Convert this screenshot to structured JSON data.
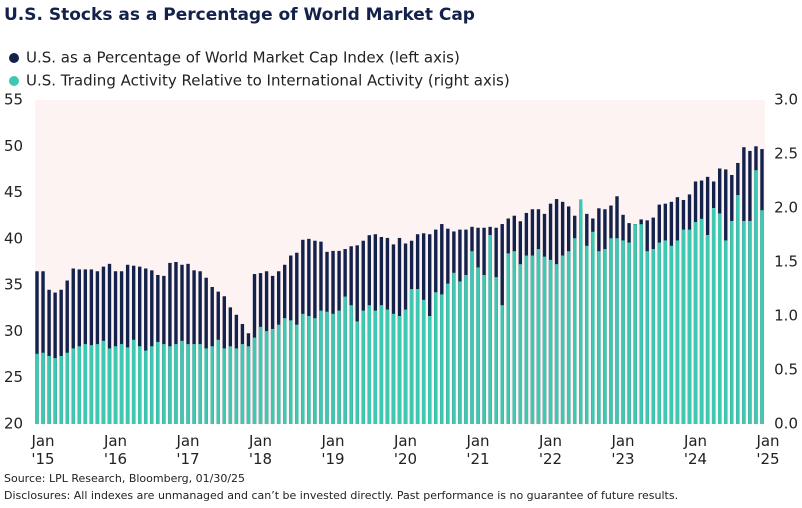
{
  "chart_data": {
    "type": "bar",
    "title": "U.S. Stocks as a Percentage of World Market Cap",
    "source": "Source: LPL Research, Bloomberg, 01/30/25",
    "disclosure": "Disclosures: All indexes are unmanaged and can’t be invested directly. Past performance is no guarantee of future results.",
    "categories": [
      "Jan '15",
      null,
      null,
      null,
      null,
      null,
      null,
      null,
      null,
      null,
      null,
      null,
      "Jan '16",
      null,
      null,
      null,
      null,
      null,
      null,
      null,
      null,
      null,
      null,
      null,
      "Jan '17",
      null,
      null,
      null,
      null,
      null,
      null,
      null,
      null,
      null,
      null,
      null,
      "Jan '18",
      null,
      null,
      null,
      null,
      null,
      null,
      null,
      null,
      null,
      null,
      null,
      "Jan '19",
      null,
      null,
      null,
      null,
      null,
      null,
      null,
      null,
      null,
      null,
      null,
      "Jan '20",
      null,
      null,
      null,
      null,
      null,
      null,
      null,
      null,
      null,
      null,
      null,
      "Jan '21",
      null,
      null,
      null,
      null,
      null,
      null,
      null,
      null,
      null,
      null,
      null,
      "Jan '22",
      null,
      null,
      null,
      null,
      null,
      null,
      null,
      null,
      null,
      null,
      null,
      "Jan '23",
      null,
      null,
      null,
      null,
      null,
      null,
      null,
      null,
      null,
      null,
      null,
      "Jan '24",
      null,
      null,
      null,
      null,
      null,
      null,
      null,
      null,
      null,
      null,
      null,
      "Jan '25"
    ],
    "series": [
      {
        "name": "U.S. as a Percentage of World Market Cap Index (left axis)",
        "color": "#13214b",
        "axis": "y",
        "values": [
          36.5,
          36.5,
          34.5,
          34.2,
          34.5,
          35.5,
          36.8,
          36.7,
          36.7,
          36.7,
          36.5,
          37.0,
          37.3,
          36.5,
          36.5,
          37.2,
          37.1,
          37.0,
          36.8,
          36.6,
          36.1,
          36.0,
          37.4,
          37.5,
          37.2,
          37.3,
          36.6,
          36.5,
          35.8,
          34.8,
          34.3,
          33.8,
          32.6,
          31.8,
          30.8,
          29.8,
          36.2,
          36.3,
          36.5,
          36.0,
          36.5,
          37.2,
          38.2,
          38.5,
          39.9,
          40.0,
          39.8,
          39.7,
          38.6,
          38.7,
          38.7,
          38.9,
          39.2,
          39.3,
          39.8,
          40.4,
          40.5,
          40.2,
          40.1,
          39.4,
          40.1,
          39.5,
          39.8,
          40.5,
          40.6,
          40.5,
          41.0,
          41.6,
          41.1,
          40.8,
          41.0,
          41.0,
          41.3,
          41.2,
          41.2,
          41.3,
          41.2,
          41.6,
          42.2,
          42.5,
          41.9,
          42.8,
          43.2,
          43.2,
          42.7,
          43.8,
          44.3,
          44.0,
          43.5,
          42.5,
          43.3,
          42.7,
          42.2,
          43.3,
          43.2,
          43.6,
          44.6,
          42.6,
          41.7,
          41.6,
          42.1,
          42.0,
          42.3,
          43.7,
          43.8,
          44.0,
          44.5,
          44.2,
          44.8,
          46.2,
          46.3,
          46.7,
          46.2,
          47.6,
          47.5,
          46.9,
          48.2,
          49.9,
          49.5,
          50.0,
          49.7
        ]
      },
      {
        "name": "U.S. Trading Activity Relative to International Activity (right axis)",
        "color": "#3dc9b1",
        "axis": "y2",
        "values": [
          0.65,
          0.66,
          0.63,
          0.61,
          0.63,
          0.66,
          0.7,
          0.72,
          0.74,
          0.73,
          0.74,
          0.77,
          0.7,
          0.72,
          0.74,
          0.71,
          0.78,
          0.72,
          0.68,
          0.72,
          0.76,
          0.74,
          0.72,
          0.74,
          0.77,
          0.74,
          0.74,
          0.74,
          0.7,
          0.72,
          0.78,
          0.7,
          0.72,
          0.7,
          0.74,
          0.72,
          0.8,
          0.9,
          0.86,
          0.88,
          0.92,
          0.98,
          0.96,
          0.92,
          1.02,
          1.0,
          0.98,
          1.05,
          1.04,
          1.02,
          1.05,
          1.18,
          1.1,
          0.95,
          1.05,
          1.1,
          1.05,
          1.1,
          1.06,
          1.02,
          1.0,
          1.06,
          1.25,
          1.25,
          1.15,
          1.0,
          1.22,
          1.2,
          1.3,
          1.4,
          1.32,
          1.38,
          1.6,
          1.45,
          1.38,
          1.75,
          1.36,
          1.1,
          1.58,
          1.6,
          1.48,
          1.56,
          1.56,
          1.62,
          1.55,
          1.52,
          1.48,
          1.56,
          1.6,
          1.72,
          2.08,
          1.65,
          1.78,
          1.6,
          1.62,
          1.72,
          1.72,
          1.7,
          1.68,
          1.85,
          1.85,
          1.6,
          1.62,
          1.68,
          1.7,
          1.65,
          1.7,
          1.8,
          1.8,
          1.87,
          1.9,
          1.75,
          2.0,
          1.95,
          1.7,
          1.88,
          2.12,
          1.88,
          1.88,
          2.35,
          1.98
        ]
      }
    ],
    "ylim": [
      20,
      55
    ],
    "yticks": [
      20,
      25,
      30,
      35,
      40,
      45,
      50,
      55
    ],
    "y2lim": [
      0,
      3
    ],
    "y2ticks": [
      {
        "value": 0,
        "label": "0.0"
      },
      0.5,
      {
        "value": 1,
        "label": "1.0"
      },
      1.5,
      {
        "value": 2,
        "label": "2.0"
      },
      2.5,
      {
        "value": 3,
        "label": "3.0"
      }
    ],
    "background": "#fdf3f2"
  }
}
